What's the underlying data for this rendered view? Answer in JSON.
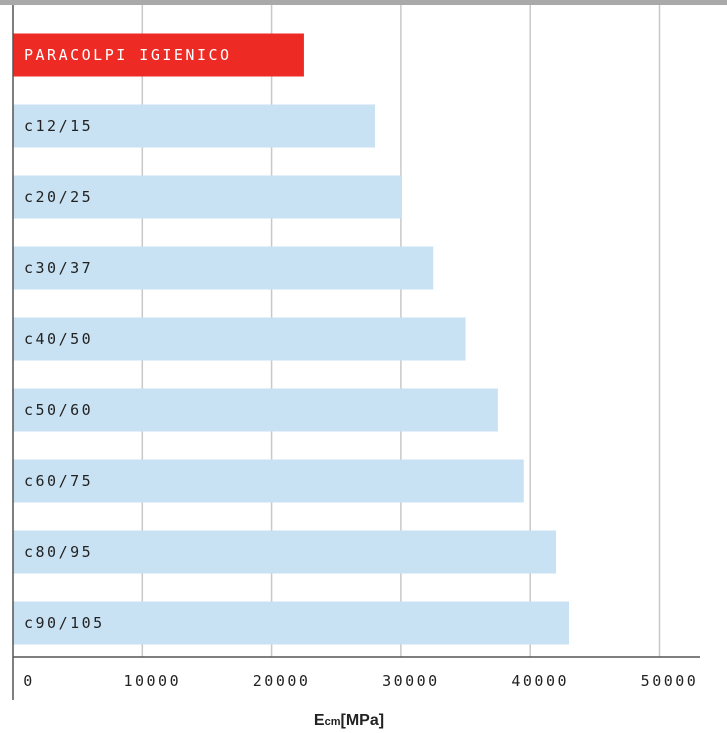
{
  "chart_data": {
    "type": "bar",
    "orientation": "horizontal",
    "categories": [
      "PARACOLPI IGIENICO",
      "c12/15",
      "c20/25",
      "c30/37",
      "c40/50",
      "c50/60",
      "c60/75",
      "c80/95",
      "c90/105"
    ],
    "values": [
      22500,
      28000,
      30000,
      32500,
      35000,
      37500,
      39500,
      42000,
      43000
    ],
    "xlim": [
      0,
      50000
    ],
    "xticks": [
      "0",
      "10000",
      "20000",
      "30000",
      "40000",
      "50000"
    ],
    "xtick_values": [
      0,
      10000,
      20000,
      30000,
      40000,
      50000
    ],
    "xlabel": {
      "main": "E",
      "sub": "cm",
      "rest": "[MPa]"
    },
    "grid": true,
    "colors": {
      "highlight": "#ee2a24",
      "bar": "#c8e2f3",
      "grid": "#c8c8c8",
      "axis": "#555555",
      "highlight_text": "#ffffff",
      "bar_text": "#222222"
    }
  }
}
